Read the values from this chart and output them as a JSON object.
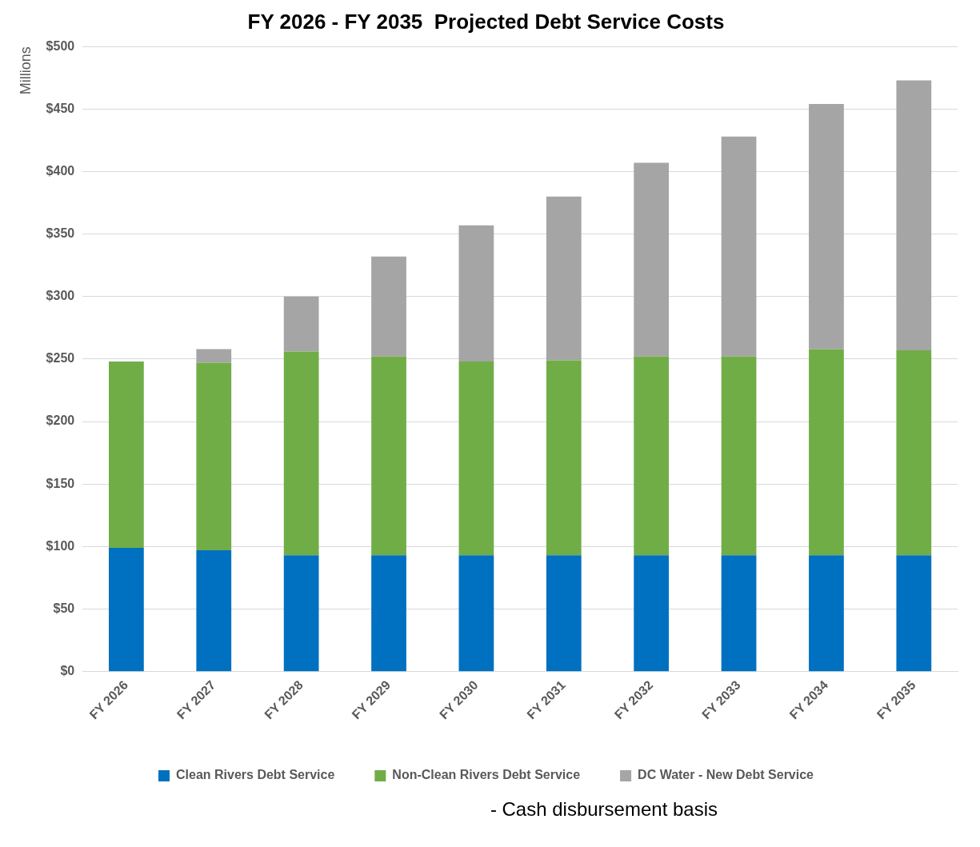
{
  "chart_data": {
    "type": "bar",
    "title": "FY 2026 - FY 2035  Projected Debt Service Costs",
    "ylabel": "Millions",
    "categories": [
      "FY 2026",
      "FY 2027",
      "FY 2028",
      "FY 2029",
      "FY 2030",
      "FY 2031",
      "FY 2032",
      "FY 2033",
      "FY 2034",
      "FY 2035"
    ],
    "series": [
      {
        "name": "Clean Rivers Debt Service",
        "color": "#0070c0",
        "values": [
          99,
          97,
          93,
          93,
          93,
          93,
          93,
          93,
          93,
          93
        ]
      },
      {
        "name": "Non-Clean Rivers Debt Service",
        "color": "#70ad47",
        "values": [
          149,
          150,
          163,
          159,
          155,
          156,
          159,
          159,
          165,
          164
        ]
      },
      {
        "name": "DC Water - New Debt Service",
        "color": "#a5a5a5",
        "values": [
          null,
          11,
          44,
          80,
          109,
          131,
          155,
          176,
          196,
          216
        ]
      }
    ],
    "stacked": true,
    "ylim": [
      0,
      500
    ],
    "yticks": [
      {
        "value": 0,
        "label": "$0"
      },
      {
        "value": 50,
        "label": "$50"
      },
      {
        "value": 100,
        "label": "$100"
      },
      {
        "value": 150,
        "label": "$150"
      },
      {
        "value": 200,
        "label": "$200"
      },
      {
        "value": 250,
        "label": "$250"
      },
      {
        "value": 300,
        "label": "$300"
      },
      {
        "value": 350,
        "label": "$350"
      },
      {
        "value": 400,
        "label": "$400"
      },
      {
        "value": 450,
        "label": "$450"
      },
      {
        "value": 500,
        "label": "$500"
      }
    ],
    "grid": "y",
    "legend": "bottom",
    "annotations": [
      "- Cash disbursement basis"
    ]
  }
}
